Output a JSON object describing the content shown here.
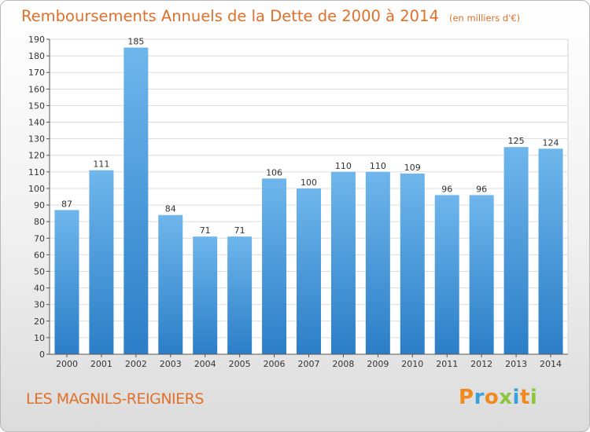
{
  "header": {
    "title": "Remboursements Annuels de la Dette de 2000 à 2014",
    "unit_note": "(en milliers d'€)"
  },
  "footer": {
    "commune": "LES MAGNILS-REIGNIERS",
    "brand": "Proxiti",
    "brand_colors": [
      "#f08a1e",
      "#3aa0d8",
      "#f08a1e",
      "#8cc63f",
      "#3aa0d8",
      "#f08a1e",
      "#8cc63f"
    ]
  },
  "colors": {
    "bar_top": "#6fb6ec",
    "bar_bottom": "#2b7ec7",
    "title": "#e0702a"
  },
  "chart_data": {
    "type": "bar",
    "categories": [
      "2000",
      "2001",
      "2002",
      "2003",
      "2004",
      "2005",
      "2006",
      "2007",
      "2008",
      "2009",
      "2010",
      "2011",
      "2012",
      "2013",
      "2014"
    ],
    "values": [
      87,
      111,
      185,
      84,
      71,
      71,
      106,
      100,
      110,
      110,
      109,
      96,
      96,
      125,
      124
    ],
    "ylim": [
      0,
      190
    ],
    "yticks": [
      0,
      10,
      20,
      30,
      40,
      50,
      60,
      70,
      80,
      90,
      100,
      110,
      120,
      130,
      140,
      150,
      160,
      170,
      180,
      190
    ],
    "grid": true,
    "title": "Remboursements Annuels de la Dette de 2000 à 2014",
    "xlabel": "",
    "ylabel": ""
  }
}
